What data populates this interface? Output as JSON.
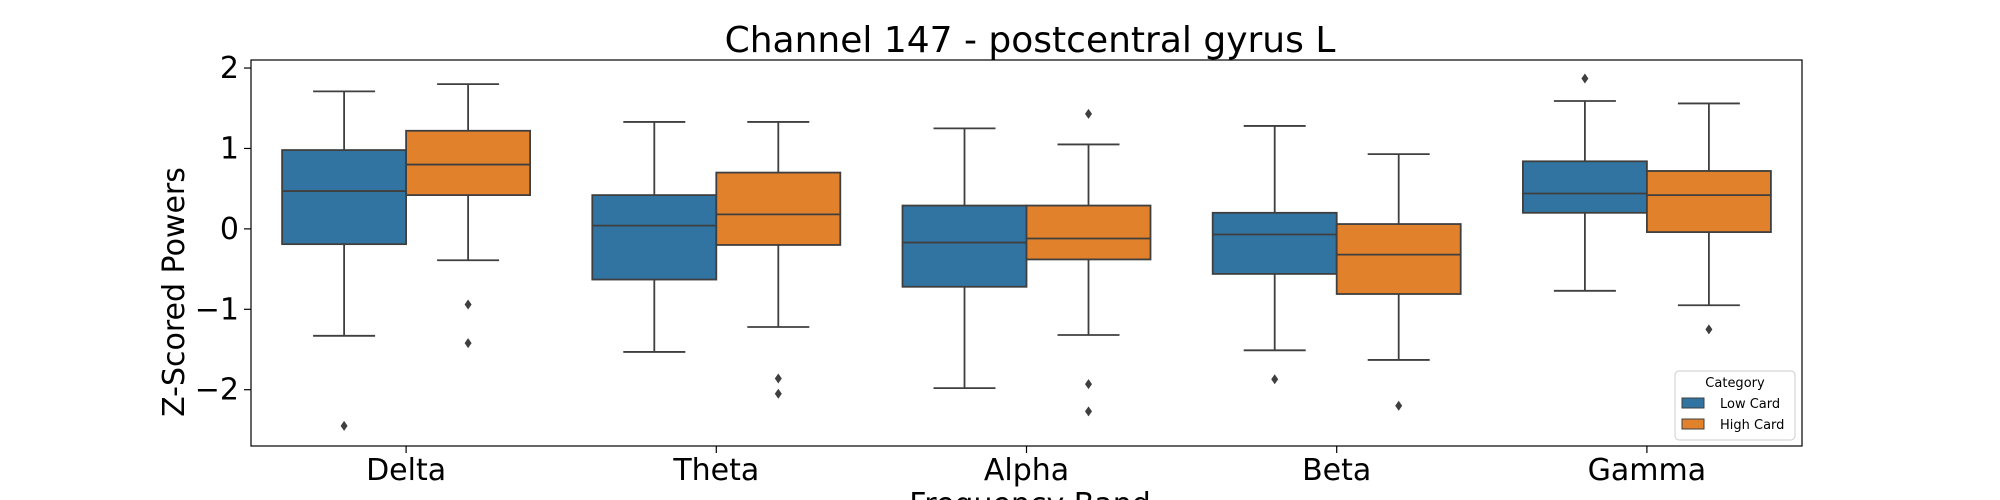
{
  "chart_data": {
    "type": "box",
    "title": "Channel 147 - postcentral gyrus L",
    "xlabel": "Frequency Band",
    "ylabel": "Z-Scored Powers",
    "ylim": [
      -2.7,
      2.1
    ],
    "yticks": [
      2,
      1,
      0,
      -1,
      -2
    ],
    "ytick_labels": [
      "2",
      "1",
      "0",
      "−1",
      "−2"
    ],
    "categories": [
      "Delta",
      "Theta",
      "Alpha",
      "Beta",
      "Gamma"
    ],
    "legend": {
      "title": "Category",
      "position": "lower-right"
    },
    "series": [
      {
        "name": "Low Card",
        "color": "#3274a1",
        "boxes": [
          {
            "whislo": -1.33,
            "q1": -0.19,
            "med": 0.47,
            "q3": 0.98,
            "whishi": 1.71,
            "fliers": [
              -2.45
            ]
          },
          {
            "whislo": -1.53,
            "q1": -0.63,
            "med": 0.04,
            "q3": 0.42,
            "whishi": 1.33,
            "fliers": []
          },
          {
            "whislo": -1.98,
            "q1": -0.72,
            "med": -0.17,
            "q3": 0.29,
            "whishi": 1.25,
            "fliers": []
          },
          {
            "whislo": -1.51,
            "q1": -0.56,
            "med": -0.07,
            "q3": 0.2,
            "whishi": 1.28,
            "fliers": [
              -1.87
            ]
          },
          {
            "whislo": -0.77,
            "q1": 0.2,
            "med": 0.44,
            "q3": 0.84,
            "whishi": 1.59,
            "fliers": [
              1.87
            ]
          }
        ]
      },
      {
        "name": "High Card",
        "color": "#e1812c",
        "boxes": [
          {
            "whislo": -0.39,
            "q1": 0.42,
            "med": 0.8,
            "q3": 1.22,
            "whishi": 1.8,
            "fliers": [
              -0.94,
              -1.42
            ]
          },
          {
            "whislo": -1.22,
            "q1": -0.2,
            "med": 0.18,
            "q3": 0.7,
            "whishi": 1.33,
            "fliers": [
              -1.86,
              -2.05
            ]
          },
          {
            "whislo": -1.32,
            "q1": -0.38,
            "med": -0.12,
            "q3": 0.29,
            "whishi": 1.05,
            "fliers": [
              1.43,
              -1.93,
              -2.27
            ]
          },
          {
            "whislo": -1.63,
            "q1": -0.81,
            "med": -0.32,
            "q3": 0.06,
            "whishi": 0.93,
            "fliers": [
              -2.2
            ]
          },
          {
            "whislo": -0.95,
            "q1": -0.04,
            "med": 0.42,
            "q3": 0.72,
            "whishi": 1.56,
            "fliers": [
              -1.25
            ]
          }
        ]
      }
    ]
  }
}
